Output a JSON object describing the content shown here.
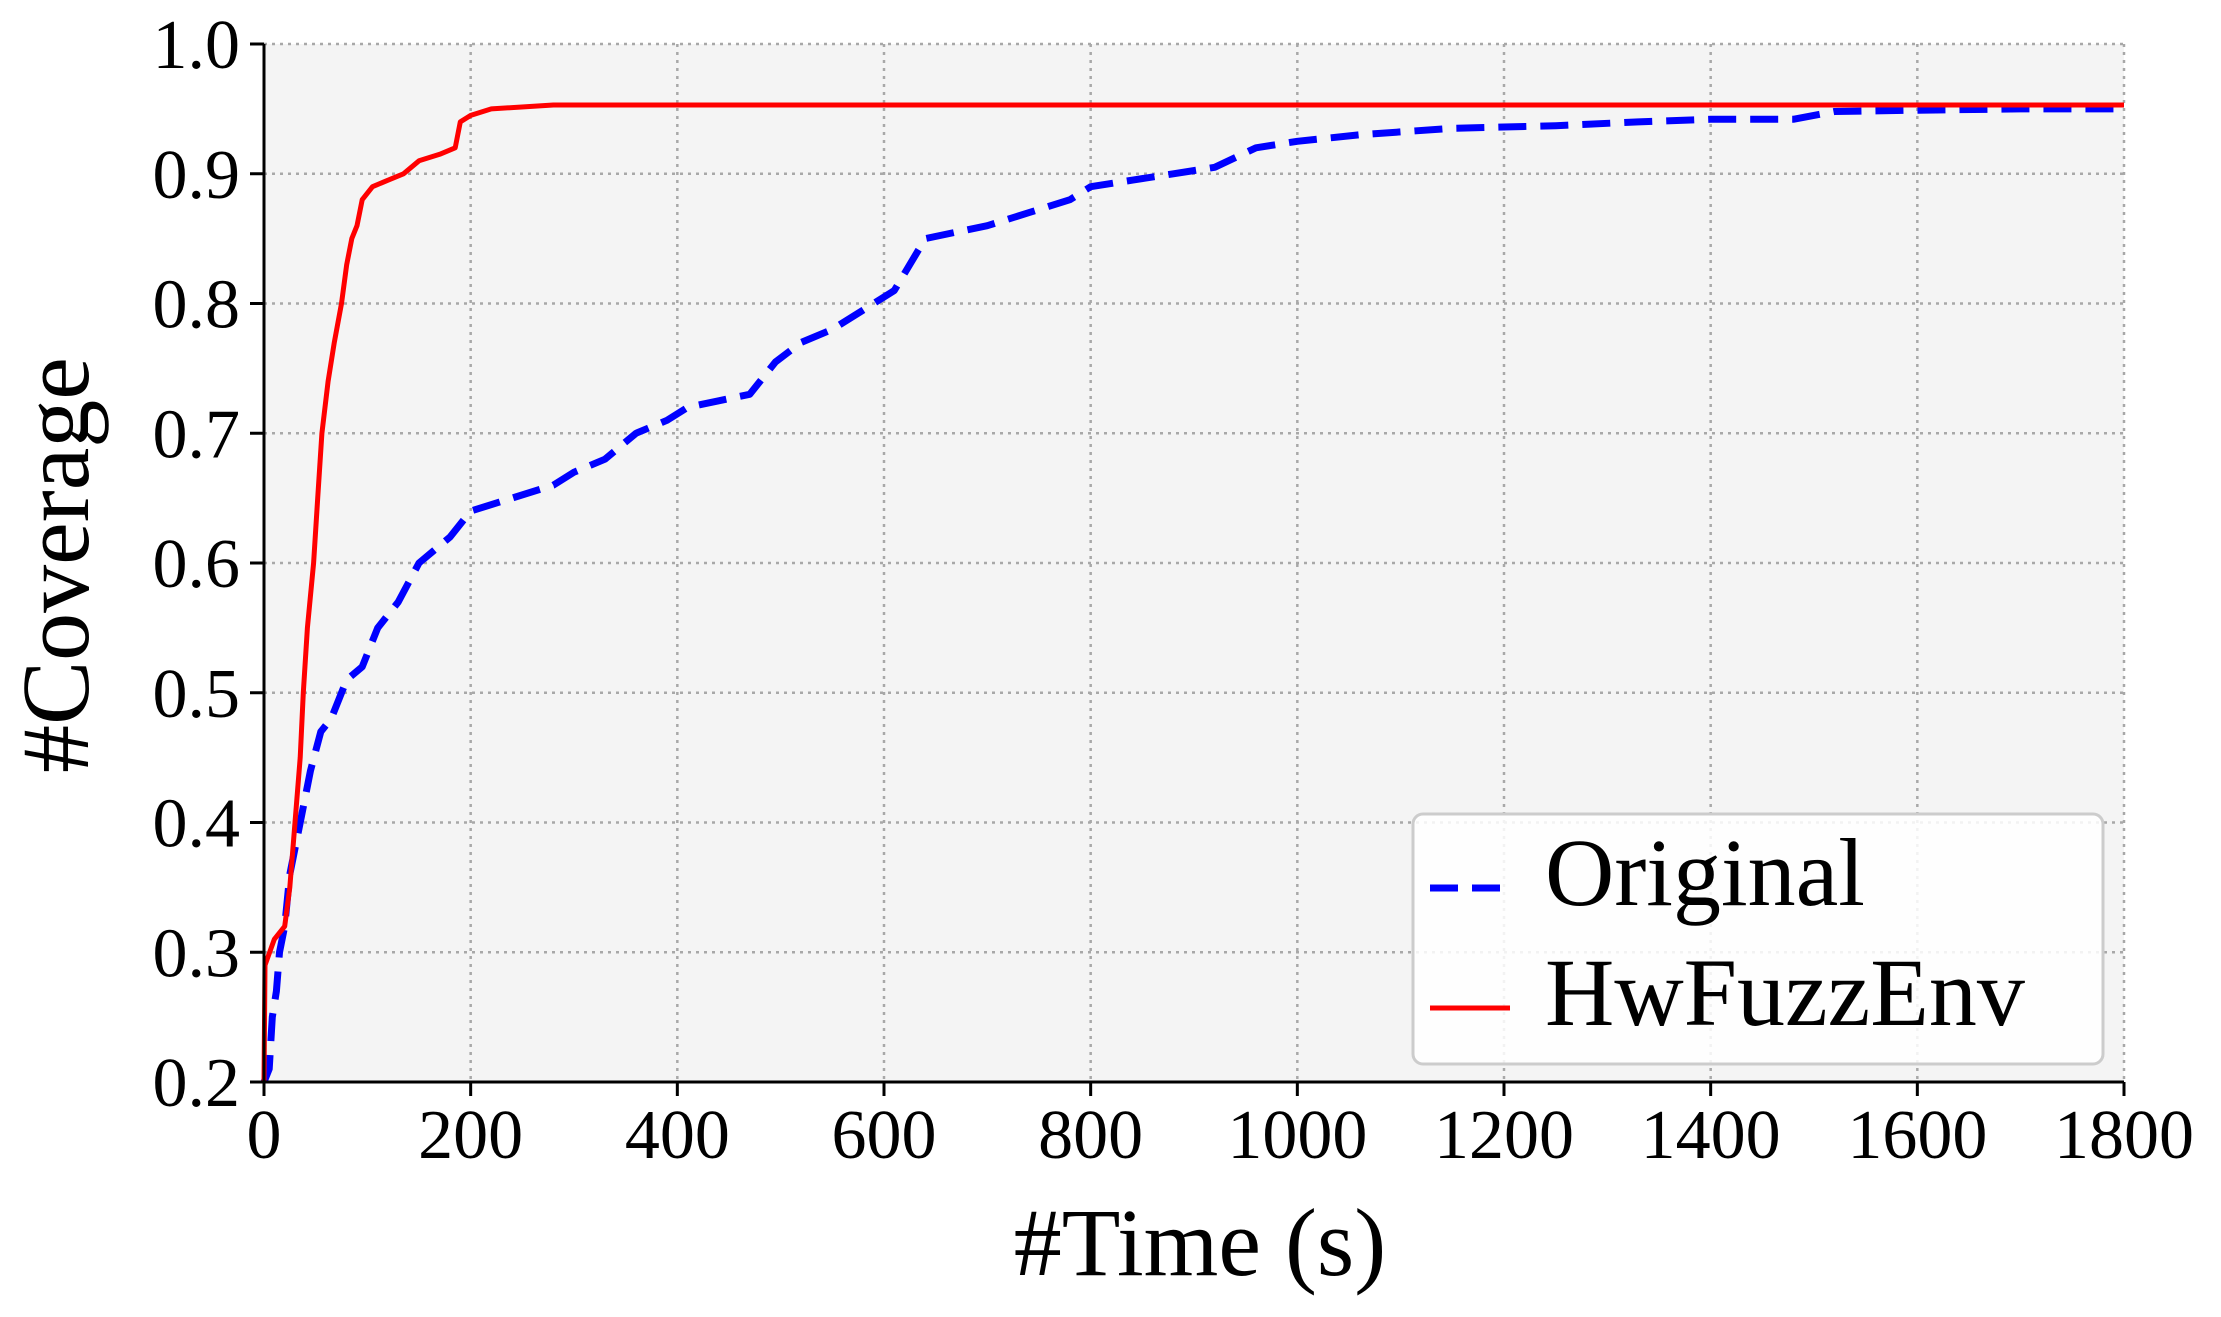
{
  "chart_data": {
    "type": "line",
    "title": "",
    "xlabel": "#Time (s)",
    "ylabel": "#Coverage",
    "xlim": [
      0,
      1800
    ],
    "ylim": [
      0.2,
      1.0
    ],
    "xticks": [
      0,
      200,
      400,
      600,
      800,
      1000,
      1200,
      1400,
      1600,
      1800
    ],
    "yticks": [
      0.2,
      0.3,
      0.4,
      0.5,
      0.6,
      0.7,
      0.8,
      0.9,
      1.0
    ],
    "xtick_labels": [
      "0",
      "200",
      "400",
      "600",
      "800",
      "1000",
      "1200",
      "1400",
      "1600",
      "1800"
    ],
    "ytick_labels": [
      "0.2",
      "0.3",
      "0.4",
      "0.5",
      "0.6",
      "0.7",
      "0.8",
      "0.9",
      "1.0"
    ],
    "grid": true,
    "legend_position": "bottom-right",
    "background": "#f4f4f4",
    "series": [
      {
        "name": "Original",
        "color": "#0000ff",
        "style": "dashed",
        "points": [
          [
            0,
            0.2
          ],
          [
            5,
            0.21
          ],
          [
            8,
            0.25
          ],
          [
            12,
            0.27
          ],
          [
            15,
            0.3
          ],
          [
            20,
            0.32
          ],
          [
            25,
            0.36
          ],
          [
            35,
            0.4
          ],
          [
            45,
            0.44
          ],
          [
            55,
            0.47
          ],
          [
            65,
            0.48
          ],
          [
            80,
            0.51
          ],
          [
            95,
            0.52
          ],
          [
            110,
            0.55
          ],
          [
            130,
            0.57
          ],
          [
            150,
            0.6
          ],
          [
            180,
            0.62
          ],
          [
            200,
            0.64
          ],
          [
            240,
            0.65
          ],
          [
            280,
            0.66
          ],
          [
            300,
            0.67
          ],
          [
            330,
            0.68
          ],
          [
            360,
            0.7
          ],
          [
            390,
            0.71
          ],
          [
            410,
            0.72
          ],
          [
            440,
            0.725
          ],
          [
            470,
            0.73
          ],
          [
            495,
            0.755
          ],
          [
            520,
            0.77
          ],
          [
            550,
            0.78
          ],
          [
            580,
            0.795
          ],
          [
            610,
            0.81
          ],
          [
            640,
            0.85
          ],
          [
            670,
            0.855
          ],
          [
            700,
            0.86
          ],
          [
            740,
            0.87
          ],
          [
            780,
            0.88
          ],
          [
            800,
            0.89
          ],
          [
            840,
            0.895
          ],
          [
            880,
            0.9
          ],
          [
            920,
            0.905
          ],
          [
            960,
            0.92
          ],
          [
            1000,
            0.925
          ],
          [
            1060,
            0.93
          ],
          [
            1150,
            0.935
          ],
          [
            1250,
            0.937
          ],
          [
            1330,
            0.94
          ],
          [
            1400,
            0.942
          ],
          [
            1480,
            0.942
          ],
          [
            1520,
            0.948
          ],
          [
            1600,
            0.949
          ],
          [
            1700,
            0.95
          ],
          [
            1800,
            0.95
          ]
        ]
      },
      {
        "name": "HwFuzzEnv",
        "color": "#ff0000",
        "style": "solid",
        "points": [
          [
            0,
            0.2
          ],
          [
            1,
            0.29
          ],
          [
            10,
            0.31
          ],
          [
            20,
            0.32
          ],
          [
            25,
            0.35
          ],
          [
            30,
            0.4
          ],
          [
            35,
            0.45
          ],
          [
            38,
            0.5
          ],
          [
            42,
            0.55
          ],
          [
            48,
            0.6
          ],
          [
            52,
            0.65
          ],
          [
            56,
            0.7
          ],
          [
            62,
            0.74
          ],
          [
            68,
            0.77
          ],
          [
            75,
            0.8
          ],
          [
            80,
            0.83
          ],
          [
            85,
            0.85
          ],
          [
            90,
            0.86
          ],
          [
            95,
            0.88
          ],
          [
            105,
            0.89
          ],
          [
            120,
            0.895
          ],
          [
            135,
            0.9
          ],
          [
            150,
            0.91
          ],
          [
            170,
            0.915
          ],
          [
            185,
            0.92
          ],
          [
            190,
            0.94
          ],
          [
            200,
            0.945
          ],
          [
            220,
            0.95
          ],
          [
            280,
            0.953
          ],
          [
            1800,
            0.953
          ]
        ]
      }
    ]
  }
}
